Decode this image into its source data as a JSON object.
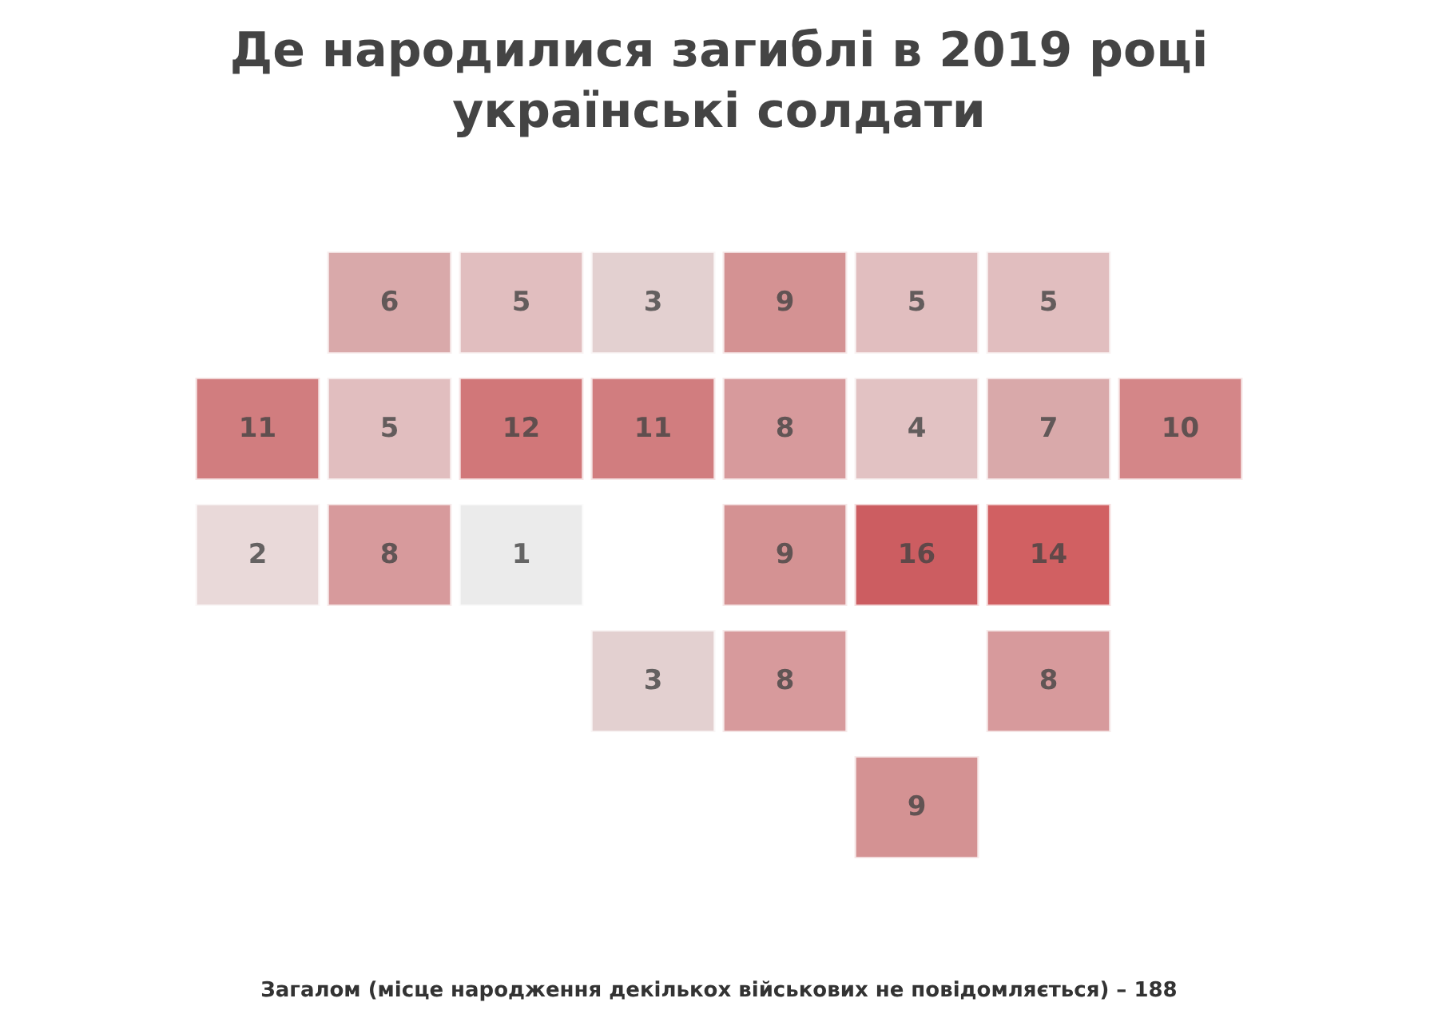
{
  "chart_data": {
    "type": "other",
    "title": "Де народилися загиблі в 2019 році\nукраїнські солдати",
    "categories": [
      null,
      null,
      null,
      null,
      null,
      null,
      null,
      null,
      null,
      null,
      null,
      null,
      null,
      null,
      null,
      null,
      null,
      null,
      null,
      null,
      null,
      null,
      null,
      null
    ],
    "values": [
      6,
      5,
      3,
      9,
      5,
      5,
      11,
      5,
      12,
      11,
      8,
      4,
      7,
      10,
      2,
      8,
      1,
      9,
      16,
      14,
      3,
      8,
      8,
      9
    ],
    "colors": [
      "#cf9495",
      "#d9aeaf",
      "#dcc4c4",
      "#c97778",
      "#d9aeaf",
      "#d9aeaf",
      "#c65d5f",
      "#d9aeaf",
      "#c55558",
      "#c65d5f",
      "#cd8183",
      "#dbb3b4",
      "#cf9495",
      "#c9686a",
      "#e3d0d0",
      "#cd8183",
      "#e6e6e6",
      "#c97778",
      "#bf353a",
      "#c5383b",
      "#dcc4c4",
      "#cd8183",
      "#cd8183",
      "#c97778"
    ],
    "data_labels": true,
    "annotations": [
      "Загалом (місце народження декількох військових не повідомляється) – 188"
    ]
  }
}
